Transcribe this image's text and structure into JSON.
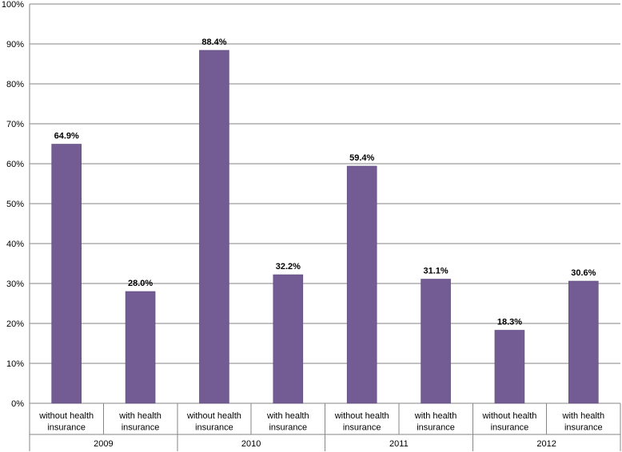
{
  "chart_data": {
    "type": "bar",
    "title": "",
    "xlabel": "",
    "ylabel": "",
    "ylim": [
      0,
      100
    ],
    "y_ticks": [
      "0%",
      "10%",
      "20%",
      "30%",
      "40%",
      "50%",
      "60%",
      "70%",
      "80%",
      "90%",
      "100%"
    ],
    "grid": true,
    "legend": "none",
    "groups": [
      {
        "year": "2009",
        "bars": [
          {
            "category": [
              "without health",
              "insurance"
            ],
            "value": 64.9,
            "label": "64.9%"
          },
          {
            "category": [
              "with health",
              "insurance"
            ],
            "value": 28.0,
            "label": "28.0%"
          }
        ]
      },
      {
        "year": "2010",
        "bars": [
          {
            "category": [
              "without health",
              "insurance"
            ],
            "value": 88.4,
            "label": "88.4%"
          },
          {
            "category": [
              "with health",
              "insurance"
            ],
            "value": 32.2,
            "label": "32.2%"
          }
        ]
      },
      {
        "year": "2011",
        "bars": [
          {
            "category": [
              "without health",
              "insurance"
            ],
            "value": 59.4,
            "label": "59.4%"
          },
          {
            "category": [
              "with health",
              "insurance"
            ],
            "value": 31.1,
            "label": "31.1%"
          }
        ]
      },
      {
        "year": "2012",
        "bars": [
          {
            "category": [
              "without health",
              "insurance"
            ],
            "value": 18.3,
            "label": "18.3%"
          },
          {
            "category": [
              "with health",
              "insurance"
            ],
            "value": 30.6,
            "label": "30.6%"
          }
        ]
      }
    ]
  },
  "colors": {
    "bar": "#735C93",
    "bar_edge": "#5E4A7C",
    "grid": "#868686",
    "axis": "#868686"
  }
}
